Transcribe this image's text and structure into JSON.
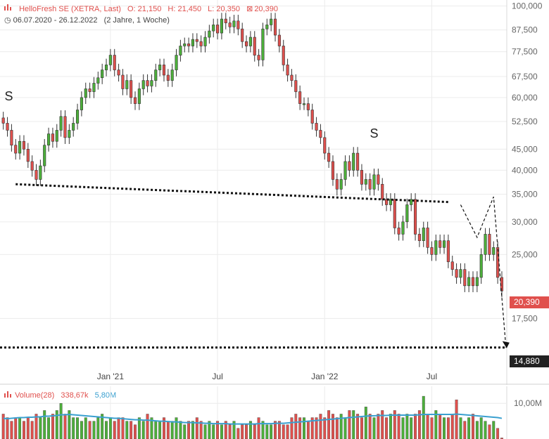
{
  "header": {
    "title": "HelloFresh SE (XETRA, Last)",
    "open": "O: 21,150",
    "high": "H: 21,450",
    "low": "L: 20,350",
    "last": "20,390",
    "range": "06.07.2020 - 26.12.2022",
    "range_note": "(2 Jahre, 1 Woche)"
  },
  "volume_header": {
    "label": "Volume(28)",
    "value": "338,67k",
    "avg": "5,80M"
  },
  "colors": {
    "up": "#4caf3a",
    "down": "#e0504d",
    "volume_avg": "#3aa0d0",
    "last_tag_bg": "#e0504d",
    "level_tag_bg": "#222222"
  },
  "annotations": {
    "shoulder_left": "S",
    "shoulder_right": "S",
    "last_tag": "20,390",
    "level_tag": "14,880"
  },
  "chart_data": {
    "type": "candlestick",
    "title": "HelloFresh SE (XETRA, Last)",
    "y_scale": "log",
    "ylim": [
      13.8,
      101
    ],
    "y_ticks": [
      {
        "v": 100,
        "label": "100,000"
      },
      {
        "v": 87.5,
        "label": "87,500"
      },
      {
        "v": 77.5,
        "label": "77,500"
      },
      {
        "v": 67.5,
        "label": "67,500"
      },
      {
        "v": 60,
        "label": "60,000"
      },
      {
        "v": 52.5,
        "label": "52,500"
      },
      {
        "v": 45,
        "label": "45,000"
      },
      {
        "v": 40,
        "label": "40,000"
      },
      {
        "v": 35,
        "label": "35,000"
      },
      {
        "v": 30,
        "label": "30,000"
      },
      {
        "v": 25,
        "label": "25,000"
      },
      {
        "v": 17.5,
        "label": "17,500"
      }
    ],
    "x_ticks": [
      {
        "i": 26,
        "label": "Jan '21"
      },
      {
        "i": 52,
        "label": "Jul"
      },
      {
        "i": 78,
        "label": "Jan '22"
      },
      {
        "i": 104,
        "label": "Jul"
      }
    ],
    "weekly_close": [
      52,
      50,
      46,
      44,
      47,
      45,
      42,
      40,
      38,
      41,
      46,
      49,
      47,
      50,
      54,
      48,
      50,
      52,
      56,
      60,
      63,
      62,
      65,
      67,
      70,
      72,
      76,
      70,
      68,
      63,
      66,
      60,
      58,
      63,
      66,
      64,
      66,
      70,
      72,
      68,
      66,
      70,
      76,
      80,
      81,
      80,
      83,
      82,
      80,
      84,
      87,
      90,
      86,
      93,
      91,
      89,
      92,
      88,
      82,
      80,
      84,
      76,
      74,
      88,
      90,
      93,
      85,
      80,
      72,
      68,
      66,
      62,
      58,
      58,
      56,
      52,
      50,
      48,
      44,
      42,
      38,
      36,
      38,
      42,
      40,
      44,
      40,
      37,
      38,
      36,
      39,
      37,
      34,
      33,
      34,
      29,
      28,
      30,
      33,
      34,
      28,
      27,
      29,
      26,
      25,
      27,
      26,
      27,
      24,
      23,
      22,
      23,
      21,
      22,
      21,
      22,
      25,
      28,
      25,
      26,
      22,
      20.4
    ],
    "volume_mio": [
      7,
      6,
      5,
      6,
      6,
      5,
      6,
      5,
      7,
      6,
      8,
      6,
      7,
      8,
      10,
      7,
      8,
      6,
      6,
      5,
      6,
      5,
      5,
      6,
      7,
      5,
      6,
      5,
      6,
      6,
      5,
      5,
      4,
      6,
      5,
      7,
      6,
      5,
      5,
      6,
      5,
      5,
      6,
      5,
      4,
      5,
      5,
      6,
      5,
      4,
      5,
      4,
      5,
      4,
      5,
      4,
      5,
      3,
      4,
      4,
      5,
      4,
      6,
      5,
      4,
      4,
      5,
      5,
      4,
      4,
      6,
      7,
      6,
      6,
      5,
      6,
      6,
      7,
      6,
      8,
      7,
      6,
      7,
      6,
      8,
      8,
      7,
      6,
      9,
      7,
      6,
      7,
      8,
      6,
      7,
      8,
      7,
      6,
      7,
      6,
      7,
      8,
      12,
      7,
      6,
      8,
      7,
      6,
      6,
      7,
      11,
      6,
      5,
      6,
      7,
      5,
      6,
      5,
      4,
      5,
      3,
      0.3
    ],
    "volume_avg_mio": [
      5.8,
      5.7,
      5.8,
      5.9,
      6.0,
      6.0,
      6.1,
      6.1,
      6.2,
      6.2,
      6.4,
      6.4,
      6.5,
      6.6,
      6.8,
      6.8,
      6.9,
      6.8,
      6.7,
      6.6,
      6.5,
      6.4,
      6.3,
      6.2,
      6.1,
      6.0,
      5.9,
      5.8,
      5.8,
      5.7,
      5.6,
      5.5,
      5.4,
      5.4,
      5.3,
      5.3,
      5.2,
      5.1,
      5.0,
      5.0,
      4.9,
      4.8,
      4.8,
      4.7,
      4.6,
      4.6,
      4.6,
      4.5,
      4.5,
      4.4,
      4.4,
      4.3,
      4.3,
      4.3,
      4.3,
      4.2,
      4.2,
      4.2,
      4.2,
      4.2,
      4.2,
      4.2,
      4.3,
      4.3,
      4.3,
      4.3,
      4.4,
      4.4,
      4.4,
      4.5,
      4.6,
      4.7,
      4.8,
      4.9,
      5.0,
      5.1,
      5.2,
      5.3,
      5.4,
      5.5,
      5.6,
      5.7,
      5.8,
      5.9,
      6.0,
      6.1,
      6.2,
      6.3,
      6.4,
      6.5,
      6.5,
      6.6,
      6.6,
      6.6,
      6.7,
      6.7,
      6.7,
      6.7,
      6.7,
      6.7,
      6.7,
      6.8,
      6.9,
      6.9,
      6.9,
      6.9,
      6.9,
      6.9,
      6.9,
      6.9,
      7.0,
      6.9,
      6.8,
      6.7,
      6.6,
      6.5,
      6.4,
      6.3,
      6.2,
      6.1,
      6.0,
      5.8
    ],
    "volume_ticks": [
      {
        "v": 10,
        "label": "10,00M"
      }
    ],
    "necklines": [
      {
        "from": [
          3,
          37
        ],
        "to": [
          108,
          33.5
        ],
        "style": "dotted"
      },
      {
        "from": [
          0,
          14.88
        ],
        "to": [
          121,
          14.88
        ],
        "style": "dotted"
      }
    ],
    "projection": {
      "points": [
        [
          111,
          33
        ],
        [
          115,
          27.5
        ],
        [
          119,
          34.5
        ],
        [
          122,
          14.88
        ]
      ],
      "style": "dashed"
    }
  }
}
